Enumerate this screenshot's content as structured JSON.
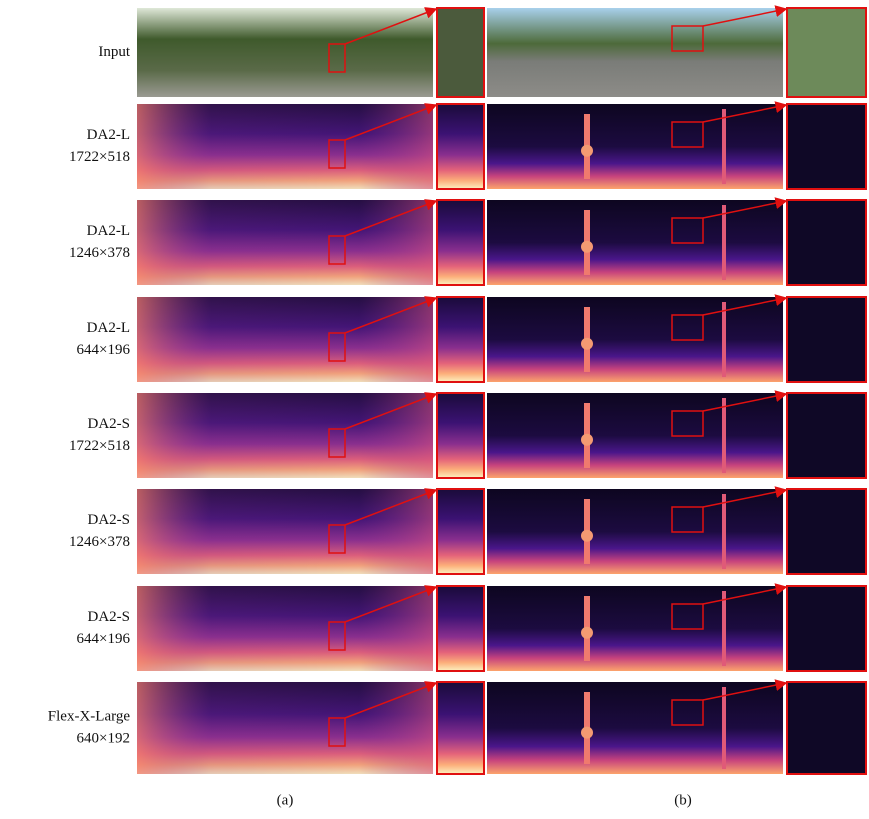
{
  "rows": [
    {
      "label": [
        "Input"
      ]
    },
    {
      "label": [
        "DA2-L",
        "1722×518"
      ]
    },
    {
      "label": [
        "DA2-L",
        "1246×378"
      ]
    },
    {
      "label": [
        "DA2-L",
        "644×196"
      ]
    },
    {
      "label": [
        "DA2-S",
        "1722×518"
      ]
    },
    {
      "label": [
        "DA2-S",
        "1246×378"
      ]
    },
    {
      "label": [
        "DA2-S",
        "644×196"
      ]
    },
    {
      "label": [
        "Flex-X-Large",
        "640×192"
      ]
    }
  ],
  "captions": [
    "(a)",
    "(b)"
  ]
}
